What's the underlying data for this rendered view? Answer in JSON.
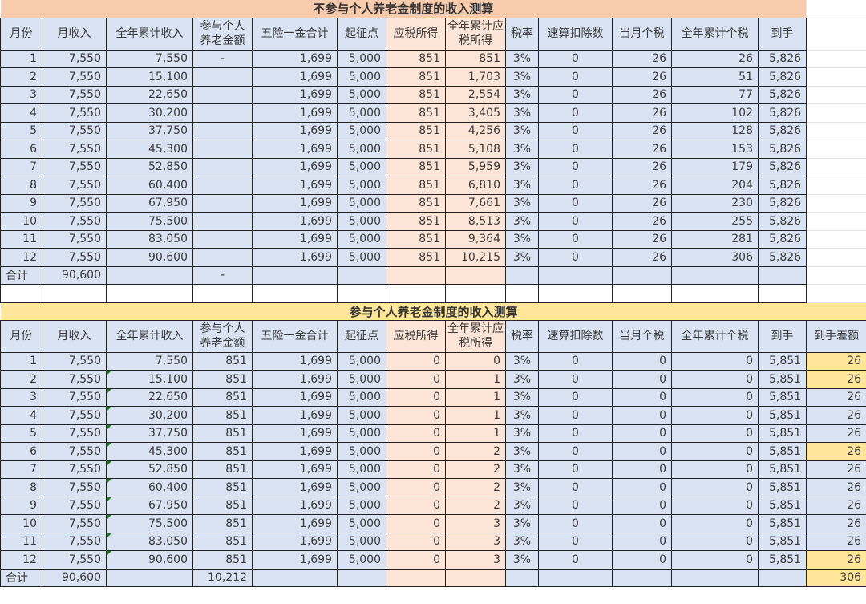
{
  "colors": {
    "blue": "#dae3f3",
    "peach": "#fce4d6",
    "title_top": "#f8cbad",
    "title_bottom": "#ffe699",
    "highlight": "#ffe699",
    "error_triangle": "#1a7a1a"
  },
  "top": {
    "title": "不参与个人养老金制度的收入测算",
    "headers": [
      "月份",
      "月收入",
      "全年累计收入",
      "参与个人养老金额",
      "五险一金合计",
      "起征点",
      "应税所得",
      "全年累计应税所得",
      "税率",
      "速算扣除数",
      "当月个税",
      "全年累计个税",
      "到手"
    ],
    "rows": [
      [
        "1",
        "7,550",
        "7,550",
        "-",
        "1,699",
        "5,000",
        "851",
        "851",
        "3%",
        "0",
        "26",
        "26",
        "5,826"
      ],
      [
        "2",
        "7,550",
        "15,100",
        "",
        "1,699",
        "5,000",
        "851",
        "1,703",
        "3%",
        "0",
        "26",
        "51",
        "5,826"
      ],
      [
        "3",
        "7,550",
        "22,650",
        "",
        "1,699",
        "5,000",
        "851",
        "2,554",
        "3%",
        "0",
        "26",
        "77",
        "5,826"
      ],
      [
        "4",
        "7,550",
        "30,200",
        "",
        "1,699",
        "5,000",
        "851",
        "3,405",
        "3%",
        "0",
        "26",
        "102",
        "5,826"
      ],
      [
        "5",
        "7,550",
        "37,750",
        "",
        "1,699",
        "5,000",
        "851",
        "4,256",
        "3%",
        "0",
        "26",
        "128",
        "5,826"
      ],
      [
        "6",
        "7,550",
        "45,300",
        "",
        "1,699",
        "5,000",
        "851",
        "5,108",
        "3%",
        "0",
        "26",
        "153",
        "5,826"
      ],
      [
        "7",
        "7,550",
        "52,850",
        "",
        "1,699",
        "5,000",
        "851",
        "5,959",
        "3%",
        "0",
        "26",
        "179",
        "5,826"
      ],
      [
        "8",
        "7,550",
        "60,400",
        "",
        "1,699",
        "5,000",
        "851",
        "6,810",
        "3%",
        "0",
        "26",
        "204",
        "5,826"
      ],
      [
        "9",
        "7,550",
        "67,950",
        "",
        "1,699",
        "5,000",
        "851",
        "7,661",
        "3%",
        "0",
        "26",
        "230",
        "5,826"
      ],
      [
        "10",
        "7,550",
        "75,500",
        "",
        "1,699",
        "5,000",
        "851",
        "8,513",
        "3%",
        "0",
        "26",
        "255",
        "5,826"
      ],
      [
        "11",
        "7,550",
        "83,050",
        "",
        "1,699",
        "5,000",
        "851",
        "9,364",
        "3%",
        "0",
        "26",
        "281",
        "5,826"
      ],
      [
        "12",
        "7,550",
        "90,600",
        "",
        "1,699",
        "5,000",
        "851",
        "10,215",
        "3%",
        "0",
        "26",
        "306",
        "5,826"
      ]
    ],
    "total": [
      "合计",
      "90,600",
      "",
      "-",
      "",
      "",
      "",
      "",
      "",
      "",
      "",
      "",
      ""
    ]
  },
  "bottom": {
    "title": "参与个人养老金制度的收入测算",
    "headers": [
      "月份",
      "月收入",
      "全年累计收入",
      "参与个人养老金额",
      "五险一金合计",
      "起征点",
      "应税所得",
      "全年累计应税所得",
      "税率",
      "速算扣除数",
      "当月个税",
      "全年累计个税",
      "到手",
      "到手差额"
    ],
    "rows": [
      [
        "1",
        "7,550",
        "7,550",
        "851",
        "1,699",
        "5,000",
        "0",
        "0",
        "3%",
        "0",
        "0",
        "0",
        "5,851",
        "26"
      ],
      [
        "2",
        "7,550",
        "15,100",
        "851",
        "1,699",
        "5,000",
        "0",
        "1",
        "3%",
        "0",
        "0",
        "0",
        "5,851",
        "26"
      ],
      [
        "3",
        "7,550",
        "22,650",
        "851",
        "1,699",
        "5,000",
        "0",
        "1",
        "3%",
        "0",
        "0",
        "0",
        "5,851",
        "26"
      ],
      [
        "4",
        "7,550",
        "30,200",
        "851",
        "1,699",
        "5,000",
        "0",
        "1",
        "3%",
        "0",
        "0",
        "0",
        "5,851",
        "26"
      ],
      [
        "5",
        "7,550",
        "37,750",
        "851",
        "1,699",
        "5,000",
        "0",
        "1",
        "3%",
        "0",
        "0",
        "0",
        "5,851",
        "26"
      ],
      [
        "6",
        "7,550",
        "45,300",
        "851",
        "1,699",
        "5,000",
        "0",
        "2",
        "3%",
        "0",
        "0",
        "0",
        "5,851",
        "26"
      ],
      [
        "7",
        "7,550",
        "52,850",
        "851",
        "1,699",
        "5,000",
        "0",
        "2",
        "3%",
        "0",
        "0",
        "0",
        "5,851",
        "26"
      ],
      [
        "8",
        "7,550",
        "60,400",
        "851",
        "1,699",
        "5,000",
        "0",
        "2",
        "3%",
        "0",
        "0",
        "0",
        "5,851",
        "26"
      ],
      [
        "9",
        "7,550",
        "67,950",
        "851",
        "1,699",
        "5,000",
        "0",
        "2",
        "3%",
        "0",
        "0",
        "0",
        "5,851",
        "26"
      ],
      [
        "10",
        "7,550",
        "75,500",
        "851",
        "1,699",
        "5,000",
        "0",
        "3",
        "3%",
        "0",
        "0",
        "0",
        "5,851",
        "26"
      ],
      [
        "11",
        "7,550",
        "83,050",
        "851",
        "1,699",
        "5,000",
        "0",
        "3",
        "3%",
        "0",
        "0",
        "0",
        "5,851",
        "26"
      ],
      [
        "12",
        "7,550",
        "90,600",
        "851",
        "1,699",
        "5,000",
        "0",
        "3",
        "3%",
        "0",
        "0",
        "0",
        "5,851",
        "26"
      ]
    ],
    "highlighted_diff_rows": [
      1,
      2,
      6,
      12
    ],
    "total": [
      "合计",
      "90,600",
      "",
      "10,212",
      "",
      "",
      "",
      "",
      "",
      "",
      "",
      "",
      "",
      "306"
    ]
  }
}
